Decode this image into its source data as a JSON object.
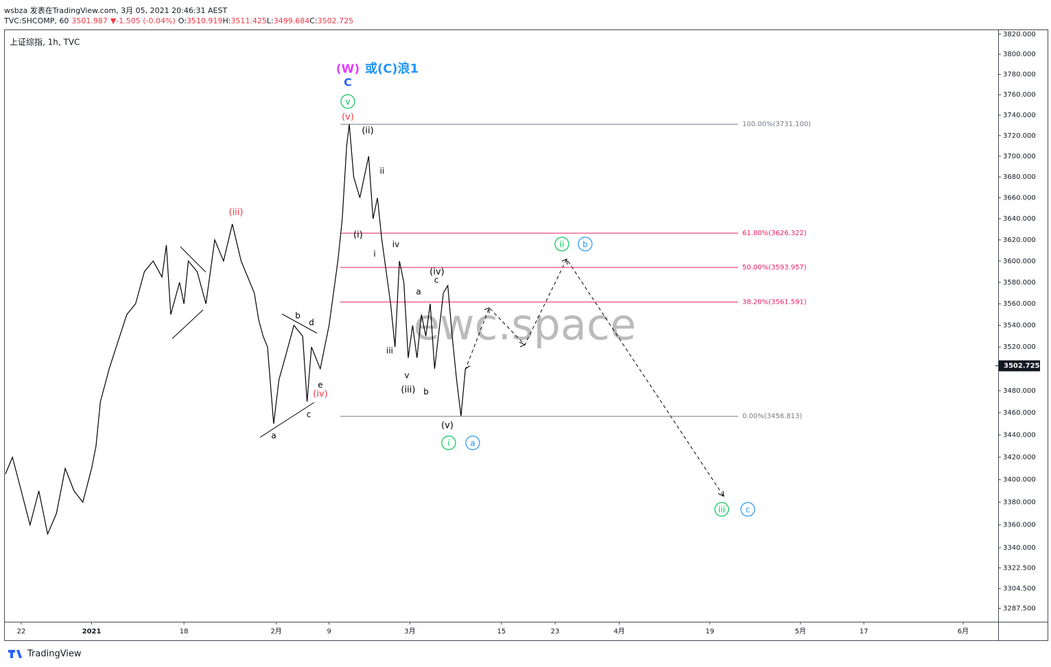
{
  "header": {
    "author_line": "wsbza 发表在TradingView.com, 3月 05, 2021 20:46:31 AEST",
    "quote": [
      "TVC:SHCOMP, 60",
      "3501.987",
      "▼",
      "-1.505 (-0.04%)",
      "O:",
      "3510.919",
      "H:",
      "3511.425",
      "L:",
      "3499.684",
      "C:",
      "3502.725"
    ]
  },
  "chart_data": {
    "type": "line",
    "title": "上证综指, 1h, TVC",
    "color": "#000000",
    "log": true,
    "x": [
      -1.8,
      -1,
      0,
      1,
      2,
      3,
      4,
      5,
      6,
      7,
      8,
      8.5,
      9,
      10,
      11,
      12,
      13,
      14,
      15,
      16,
      16.5,
      17,
      18,
      18.5,
      19,
      20,
      21,
      22,
      23,
      24,
      25,
      26,
      26.5,
      27,
      27.5,
      28,
      28.7,
      29.3,
      30,
      31,
      32,
      32.5,
      33,
      34,
      35,
      36,
      36.5,
      37,
      37.3,
      37.8,
      38.5,
      39.5,
      40,
      40.5,
      41,
      42,
      42.5,
      43,
      43.5,
      44,
      44.5,
      45,
      45.5,
      46,
      46.5,
      47,
      48,
      48.5,
      49,
      49.5,
      50,
      50.5,
      51
    ],
    "values": [
      3405,
      3420,
      3390,
      3360,
      3390,
      3352,
      3370,
      3410,
      3390,
      3380,
      3410,
      3430,
      3470,
      3500,
      3525,
      3550,
      3560,
      3590,
      3600,
      3585,
      3615,
      3550,
      3580,
      3560,
      3600,
      3590,
      3560,
      3620,
      3600,
      3635,
      3600,
      3580,
      3570,
      3545,
      3530,
      3520,
      3450,
      3490,
      3510,
      3540,
      3530,
      3470,
      3520,
      3500,
      3540,
      3600,
      3640,
      3710,
      3731,
      3680,
      3660,
      3700,
      3640,
      3660,
      3620,
      3560,
      3520,
      3600,
      3580,
      3510,
      3540,
      3510,
      3550,
      3530,
      3560,
      3500,
      3570,
      3577,
      3530,
      3490,
      3457,
      3500,
      3502.7
    ],
    "xlim": [
      -1.87,
      111.08
    ],
    "ylim": [
      3276,
      3824
    ],
    "xticks": [
      {
        "value": 0,
        "label": "22"
      },
      {
        "value": 8,
        "label": "2021"
      },
      {
        "value": 18.5,
        "label": "18"
      },
      {
        "value": 29,
        "label": "2月"
      },
      {
        "value": 35,
        "label": "9"
      },
      {
        "value": 44.2,
        "label": "3月"
      },
      {
        "value": 54.6,
        "label": "15"
      },
      {
        "value": 60.7,
        "label": "23"
      },
      {
        "value": 68,
        "label": "4月"
      },
      {
        "value": 78.3,
        "label": "19"
      },
      {
        "value": 88.6,
        "label": "5月"
      },
      {
        "value": 95.8,
        "label": "17"
      },
      {
        "value": 107.1,
        "label": "6月"
      }
    ],
    "yticks": [
      {
        "value": 3820,
        "label": "3820.000"
      },
      {
        "value": 3800,
        "label": "3800.000"
      },
      {
        "value": 3780,
        "label": "3780.000"
      },
      {
        "value": 3760,
        "label": "3760.000"
      },
      {
        "value": 3740,
        "label": "3740.000"
      },
      {
        "value": 3720,
        "label": "3720.000"
      },
      {
        "value": 3700,
        "label": "3700.000"
      },
      {
        "value": 3680,
        "label": "3680.000"
      },
      {
        "value": 3660,
        "label": "3660.000"
      },
      {
        "value": 3640,
        "label": "3640.000"
      },
      {
        "value": 3620,
        "label": "3620.000"
      },
      {
        "value": 3600,
        "label": "3600.000"
      },
      {
        "value": 3580,
        "label": "3580.000"
      },
      {
        "value": 3560,
        "label": "3560.000"
      },
      {
        "value": 3540,
        "label": "3540.000"
      },
      {
        "value": 3520,
        "label": "3520.000"
      },
      {
        "value": 3500,
        "label": "3500.000"
      },
      {
        "value": 3480,
        "label": "3480.000"
      },
      {
        "value": 3460,
        "label": "3460.000"
      },
      {
        "value": 3440,
        "label": "3440.000"
      },
      {
        "value": 3420,
        "label": "3420.000"
      },
      {
        "value": 3400,
        "label": "3400.000"
      },
      {
        "value": 3380,
        "label": "3380.000"
      },
      {
        "value": 3360,
        "label": "3360.000"
      },
      {
        "value": 3340,
        "label": "3340.000"
      },
      {
        "value": 3322.5,
        "label": "3322.500"
      },
      {
        "value": 3304.5,
        "label": "3304.500"
      },
      {
        "value": 3287.5,
        "label": "3287.500"
      }
    ],
    "last_price": {
      "value": 3502.725,
      "label": "3502.725"
    },
    "levels": [
      {
        "value": 3731.1,
        "label": "100.00%(3731.100)",
        "color": "#787b86"
      },
      {
        "value": 3626.322,
        "label": "61.80%(3626.322)",
        "color": "#e91e63"
      },
      {
        "value": 3593.957,
        "label": "50.00%(3593.957)",
        "color": "#e91e63"
      },
      {
        "value": 3561.591,
        "label": "38.20%(3561.591)",
        "color": "#e91e63"
      },
      {
        "value": 3456.813,
        "label": "0.00%(3456.813)",
        "color": "#787b86"
      }
    ],
    "annotations": [
      {
        "text": "(W)",
        "color": "#e040fb"
      },
      {
        "text": "或(C)浪1",
        "color": "#2196f3"
      },
      {
        "text": "C",
        "color": "#2962ff"
      },
      {
        "text": "v",
        "color": "#00c853",
        "circled": true
      },
      {
        "text": "(v)",
        "color": "#f23645"
      },
      {
        "text": "(ii)",
        "color": "#000000"
      },
      {
        "text": "ii",
        "color": "#000000"
      },
      {
        "text": "(i)",
        "color": "#000000"
      },
      {
        "text": "i",
        "color": "#000000"
      },
      {
        "text": "iv",
        "color": "#000000"
      },
      {
        "text": "iii",
        "color": "#000000"
      },
      {
        "text": "v",
        "color": "#000000"
      },
      {
        "text": "(iii)",
        "color": "#000000"
      },
      {
        "text": "b",
        "color": "#000000"
      },
      {
        "text": "a",
        "color": "#000000"
      },
      {
        "text": "(iv)",
        "color": "#000000"
      },
      {
        "text": "c",
        "color": "#000000"
      },
      {
        "text": "(v)",
        "color": "#000000"
      },
      {
        "text": "i",
        "color": "#00c853",
        "circled": true
      },
      {
        "text": "a",
        "color": "#2196f3",
        "circled": true
      },
      {
        "text": "ii",
        "color": "#00c853",
        "circled": true
      },
      {
        "text": "b",
        "color": "#2196f3",
        "circled": true
      },
      {
        "text": "iii",
        "color": "#00c853",
        "circled": true
      },
      {
        "text": "c",
        "color": "#2196f3",
        "circled": true
      },
      {
        "text": "(iii)",
        "color": "#f23645"
      },
      {
        "text": "(iv)",
        "color": "#f23645"
      },
      {
        "text": "b",
        "color": "#000000"
      },
      {
        "text": "d",
        "color": "#000000"
      },
      {
        "text": "e",
        "color": "#000000"
      },
      {
        "text": "a",
        "color": "#000000"
      },
      {
        "text": "c",
        "color": "#000000"
      }
    ],
    "watermark": "ewc.space"
  },
  "footer": {
    "brand": "TradingView"
  }
}
